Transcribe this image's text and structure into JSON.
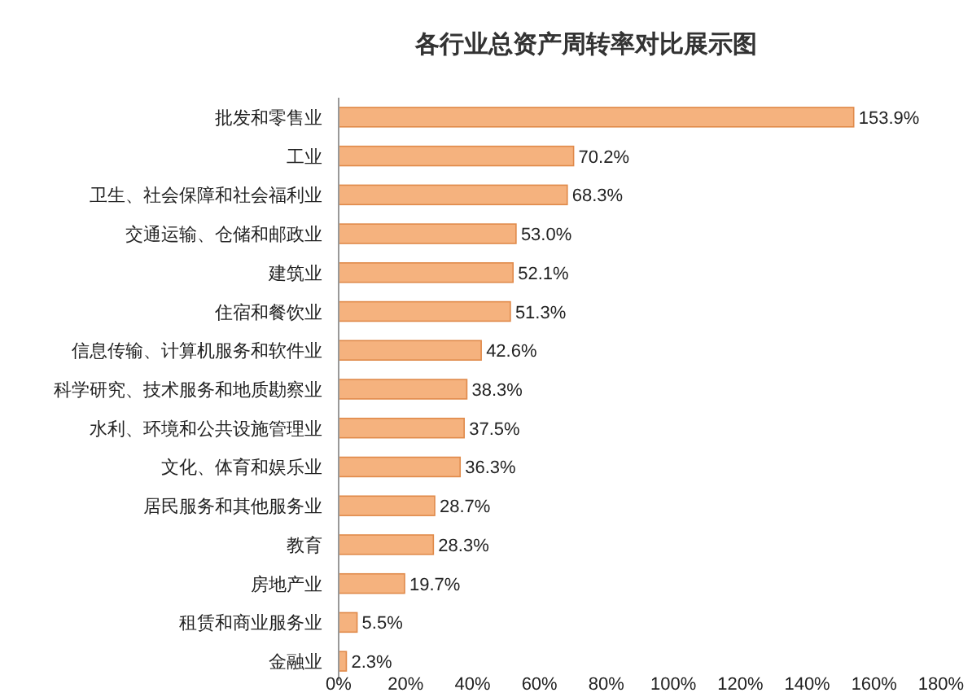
{
  "chart_data": {
    "type": "bar",
    "orientation": "horizontal",
    "title": "各行业总资产周转率对比展示图",
    "categories": [
      "批发和零售业",
      "工业",
      "卫生、社会保障和社会福利业",
      "交通运输、仓储和邮政业",
      "建筑业",
      "住宿和餐饮业",
      "信息传输、计算机服务和软件业",
      "科学研究、技术服务和地质勘察业",
      "水利、环境和公共设施管理业",
      "文化、体育和娱乐业",
      "居民服务和其他服务业",
      "教育",
      "房地产业",
      "租赁和商业服务业",
      "金融业"
    ],
    "values": [
      153.9,
      70.2,
      68.3,
      53.0,
      52.1,
      51.3,
      42.6,
      38.3,
      37.5,
      36.3,
      28.7,
      28.3,
      19.7,
      5.5,
      2.3
    ],
    "value_labels": [
      "153.9%",
      "70.2%",
      "68.3%",
      "53.0%",
      "52.1%",
      "51.3%",
      "42.6%",
      "38.3%",
      "37.5%",
      "36.3%",
      "28.7%",
      "28.3%",
      "19.7%",
      "5.5%",
      "2.3%"
    ],
    "color": "#f5b27e",
    "xlim": [
      0,
      180
    ],
    "xticks": [
      {
        "value": 0,
        "label": "0%"
      },
      {
        "value": 20,
        "label": "20%"
      },
      {
        "value": 40,
        "label": "40%"
      },
      {
        "value": 60,
        "label": "60%"
      },
      {
        "value": 80,
        "label": "80%"
      },
      {
        "value": 100,
        "label": "100%"
      },
      {
        "value": 120,
        "label": "120%"
      },
      {
        "value": 140,
        "label": "140%"
      },
      {
        "value": 160,
        "label": "160%"
      },
      {
        "value": 180,
        "label": "180%"
      }
    ]
  }
}
